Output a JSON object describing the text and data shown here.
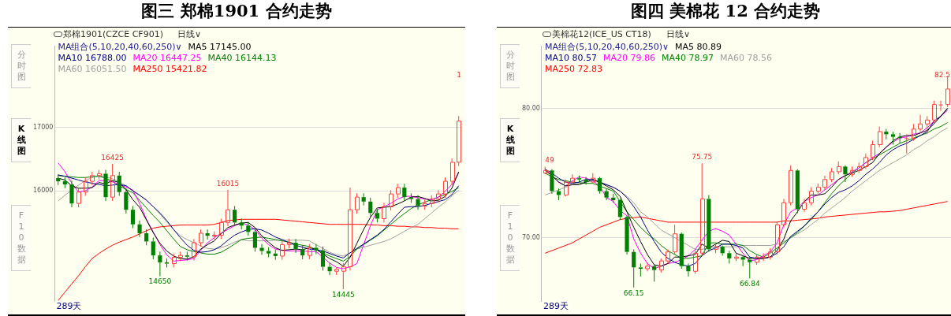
{
  "chart_data": [
    {
      "type": "candlestick",
      "title": "图三 郑棉1901 合约走势",
      "legend_title": "MA组合(5,10,20,40,60,250)∨",
      "categories": [
        null,
        null,
        null,
        null,
        null,
        null,
        null,
        null,
        null,
        null,
        null,
        null,
        null,
        null,
        null,
        null,
        null,
        null,
        null,
        null,
        null,
        null,
        null,
        null,
        null,
        null,
        null,
        null,
        null,
        null,
        null,
        null,
        null,
        null,
        null,
        null,
        null,
        null,
        null,
        null,
        null,
        null,
        null,
        null,
        null,
        null,
        null,
        null,
        null,
        null,
        null,
        null,
        null,
        null,
        null,
        null,
        null,
        null,
        null,
        null
      ],
      "ohlc": [
        [
          16200,
          16260,
          16090,
          16150
        ],
        [
          16150,
          16210,
          16040,
          16100
        ],
        [
          16100,
          16160,
          15740,
          15800
        ],
        [
          15800,
          16040,
          15740,
          15980
        ],
        [
          15980,
          16210,
          15920,
          16150
        ],
        [
          16150,
          16300,
          16090,
          16240
        ],
        [
          16240,
          16330,
          16180,
          16270
        ],
        [
          16270,
          16330,
          15840,
          15900
        ],
        [
          15900,
          16425,
          15840,
          16240
        ],
        [
          16240,
          16300,
          15920,
          15980
        ],
        [
          15980,
          16040,
          15640,
          15700
        ],
        [
          15700,
          15760,
          15410,
          15470
        ],
        [
          15470,
          15530,
          15270,
          15330
        ],
        [
          15330,
          15390,
          15140,
          15200
        ],
        [
          15200,
          15260,
          14920,
          14980
        ],
        [
          14980,
          15040,
          14650,
          14870
        ],
        [
          14870,
          14930,
          14790,
          14850
        ],
        [
          14850,
          15010,
          14790,
          14950
        ],
        [
          14950,
          15040,
          14890,
          14980
        ],
        [
          14980,
          15040,
          14900,
          14960
        ],
        [
          14960,
          15240,
          14900,
          15180
        ],
        [
          15180,
          15390,
          15120,
          15330
        ],
        [
          15330,
          15390,
          15230,
          15290
        ],
        [
          15290,
          15360,
          15230,
          15300
        ],
        [
          15300,
          15560,
          15240,
          15500
        ],
        [
          15500,
          16015,
          15440,
          15700
        ],
        [
          15700,
          15760,
          15440,
          15500
        ],
        [
          15500,
          15560,
          15390,
          15450
        ],
        [
          15450,
          15510,
          15290,
          15350
        ],
        [
          15350,
          15410,
          15040,
          15100
        ],
        [
          15100,
          15160,
          14990,
          15050
        ],
        [
          15050,
          15110,
          14950,
          15010
        ],
        [
          15010,
          15070,
          14910,
          14970
        ],
        [
          14970,
          15210,
          14910,
          15150
        ],
        [
          15150,
          15240,
          15090,
          15180
        ],
        [
          15180,
          15240,
          15020,
          15080
        ],
        [
          15080,
          15140,
          14920,
          14980
        ],
        [
          14980,
          15160,
          14920,
          15100
        ],
        [
          15100,
          15160,
          15000,
          15060
        ],
        [
          15060,
          15120,
          14740,
          14800
        ],
        [
          14800,
          14860,
          14670,
          14730
        ],
        [
          14730,
          14790,
          14670,
          14760
        ],
        [
          14730,
          14860,
          14445,
          14800
        ],
        [
          14800,
          16050,
          14740,
          15700
        ],
        [
          15700,
          15960,
          15640,
          15900
        ],
        [
          15900,
          15960,
          15770,
          15830
        ],
        [
          15830,
          15890,
          15590,
          15650
        ],
        [
          15650,
          15710,
          15500,
          15560
        ],
        [
          15560,
          15810,
          15500,
          15750
        ],
        [
          15750,
          16010,
          15690,
          15950
        ],
        [
          15950,
          16110,
          15890,
          16050
        ],
        [
          16050,
          16110,
          15840,
          15900
        ],
        [
          15900,
          15960,
          15810,
          15870
        ],
        [
          15870,
          15930,
          15700,
          15760
        ],
        [
          15760,
          15860,
          15700,
          15800
        ],
        [
          15800,
          15930,
          15740,
          15870
        ],
        [
          15870,
          16010,
          15810,
          15950
        ],
        [
          15950,
          16210,
          15890,
          16150
        ],
        [
          16150,
          16510,
          16090,
          16450
        ],
        [
          16450,
          17180,
          16390,
          17100
        ]
      ],
      "colors": [
        "#008000",
        "#008000",
        "#008000",
        "#ff4040",
        "#ff4040",
        "#ff4040",
        "#ff4040",
        "#008000",
        "#ff4040",
        "#008000",
        "#008000",
        "#008000",
        "#008000",
        "#008000",
        "#008000",
        "#008000",
        "#008000",
        "#ff4040",
        "#ff4040",
        "#008000",
        "#ff4040",
        "#ff4040",
        "#008000",
        "#ff4040",
        "#ff4040",
        "#ff4040",
        "#008000",
        "#008000",
        "#008000",
        "#008000",
        "#008000",
        "#008000",
        "#008000",
        "#ff4040",
        "#ff4040",
        "#008000",
        "#008000",
        "#ff4040",
        "#008000",
        "#008000",
        "#008000",
        "#ff4040",
        "#ff4040",
        "#ff4040",
        "#ff4040",
        "#008000",
        "#008000",
        "#008000",
        "#ff4040",
        "#ff4040",
        "#ff4040",
        "#008000",
        "#008000",
        "#008000",
        "#ff4040",
        "#ff4040",
        "#ff4040",
        "#ff4040",
        "#ff4040",
        "#ff4040"
      ],
      "series": [
        {
          "type": "line",
          "name": "MA5 17145.00",
          "color": "#000000",
          "values": [
            16200,
            16170,
            16080,
            16040,
            16040,
            16050,
            16130,
            16110,
            16160,
            16130,
            16020,
            15860,
            15740,
            15540,
            15340,
            15170,
            15050,
            14970,
            14930,
            14920,
            14960,
            15080,
            15150,
            15210,
            15320,
            15420,
            15460,
            15490,
            15500,
            15420,
            15290,
            15190,
            15100,
            15060,
            15070,
            15080,
            15070,
            15100,
            15080,
            15000,
            14930,
            14880,
            14810,
            14950,
            15170,
            15390,
            15580,
            15730,
            15740,
            15750,
            15790,
            15840,
            15900,
            15910,
            15880,
            15840,
            15850,
            15910,
            16040,
            16300
          ]
        },
        {
          "type": "line",
          "name": "MA10 16788.00",
          "color": "#000080",
          "values": [
            16250,
            16230,
            16200,
            16170,
            16140,
            16120,
            16100,
            16080,
            16090,
            16100,
            16080,
            16000,
            15930,
            15850,
            15750,
            15650,
            15530,
            15390,
            15260,
            15140,
            15060,
            15030,
            15040,
            15070,
            15130,
            15220,
            15300,
            15350,
            15390,
            15400,
            15380,
            15330,
            15270,
            15230,
            15180,
            15140,
            15110,
            15080,
            15070,
            15050,
            15010,
            14970,
            14940,
            15020,
            15090,
            15160,
            15230,
            15300,
            15390,
            15510,
            15630,
            15740,
            15750,
            15750,
            15770,
            15800,
            15830,
            15860,
            15940,
            16080
          ]
        },
        {
          "type": "line",
          "name": "MA20 16447.25",
          "color": "#ff00ff",
          "values": [
            16440,
            16300,
            16120,
            15980,
            16000,
            16060,
            16160,
            16160,
            16140,
            16100,
            16060,
            16010,
            15800,
            15550,
            15350,
            15150,
            14990,
            14890,
            14900,
            14910,
            14930,
            15060,
            15180,
            15260,
            15330,
            15390,
            15450,
            15490,
            15460,
            15390,
            15250,
            15150,
            15080,
            15060,
            15050,
            15050,
            15050,
            15040,
            15040,
            14950,
            14860,
            14790,
            14770,
            14800,
            14850,
            15150,
            15450,
            15700,
            15750,
            15800,
            15870,
            15910,
            15915,
            15890,
            15870,
            15860,
            15900,
            15990,
            16100,
            16280
          ]
        },
        {
          "type": "line",
          "name": "MA40 16144.13",
          "color": "#008000",
          "values": [
            16240,
            16230,
            16220,
            16210,
            16210,
            16220,
            16230,
            16200,
            16150,
            16080,
            16020,
            15970,
            15850,
            15730,
            15610,
            15500,
            15370,
            15240,
            15120,
            15070,
            15040,
            15020,
            15000,
            15000,
            15030,
            15090,
            15160,
            15230,
            15250,
            15260,
            15270,
            15250,
            15230,
            15210,
            15190,
            15160,
            15140,
            15120,
            15070,
            15020,
            14970,
            14930,
            14890,
            14960,
            15080,
            15150,
            15220,
            15290,
            15380,
            15470,
            15560,
            15640,
            15720,
            15780,
            15820,
            15860,
            15900,
            15940,
            15990,
            16050
          ]
        },
        {
          "type": "line",
          "name": "MA60 16051.50",
          "color": "#a0a0a0",
          "values": [
            15840,
            15930,
            16010,
            16090,
            16160,
            16210,
            16240,
            16220,
            16190,
            16140,
            16080,
            16000,
            15930,
            15860,
            15750,
            15630,
            15510,
            15390,
            15290,
            15230,
            15180,
            15130,
            15090,
            15080,
            15100,
            15140,
            15190,
            15230,
            15210,
            15210,
            15210,
            15210,
            15220,
            15220,
            15220,
            15220,
            15220,
            15210,
            15150,
            15090,
            15030,
            14990,
            14970,
            15020,
            15080,
            15110,
            15140,
            15170,
            15200,
            15240,
            15300,
            15360,
            15420,
            15470,
            15560,
            15650,
            15740,
            15820,
            15920,
            16010
          ]
        },
        {
          "type": "line",
          "name": "MA250 15421.82",
          "color": "#ff0000",
          "values": [
            14270,
            14400,
            14530,
            14660,
            14800,
            14930,
            15010,
            15080,
            15140,
            15190,
            15230,
            15270,
            15320,
            15370,
            15410,
            15430,
            15440,
            15450,
            15460,
            15460,
            15460,
            15460,
            15460,
            15470,
            15500,
            15530,
            15540,
            15550,
            15550,
            15550,
            15550,
            15550,
            15550,
            15540,
            15530,
            15520,
            15510,
            15500,
            15490,
            15480,
            15470,
            15470,
            15470,
            15470,
            15470,
            15470,
            15460,
            15460,
            15450,
            15450,
            15440,
            15440,
            15430,
            15430,
            15420,
            15420,
            15410,
            15410,
            15400,
            15400
          ]
        }
      ],
      "ylim": [
        14260,
        18280
      ],
      "yticks": [
        16000,
        17000
      ],
      "grid": "y",
      "legend": "top left",
      "tick_labels": "y",
      "marker": "none",
      "line_style": "solid",
      "annotations": [
        "郑棉1901(CZCE CF901)",
        "日线∨",
        "分时图",
        "K线图",
        "F10数据",
        "289天",
        "1",
        {
          "text": "16425",
          "y": 16425
        },
        {
          "text": "16015",
          "y": 16015
        },
        {
          "text": "14650",
          "y": 14650
        },
        {
          "text": "14445",
          "y": 14445
        }
      ]
    },
    {
      "type": "candlestick",
      "title": "图四 美棉花 12 合约走势",
      "legend_title": "MA组合(5,10,20,40,60,250)∨",
      "categories": [
        null,
        null,
        null,
        null,
        null,
        null,
        null,
        null,
        null,
        null,
        null,
        null,
        null,
        null,
        null,
        null,
        null,
        null,
        null,
        null,
        null,
        null,
        null,
        null,
        null,
        null,
        null,
        null,
        null,
        null,
        null,
        null,
        null,
        null,
        null,
        null,
        null,
        null,
        null,
        null,
        null,
        null,
        null,
        null,
        null,
        null,
        null,
        null,
        null,
        null,
        null,
        null,
        null,
        null,
        null,
        null,
        null,
        null,
        null,
        null
      ],
      "ohlc": [
        [
          75.0,
          75.49,
          74.9,
          75.2
        ],
        [
          75.2,
          75.3,
          73.4,
          73.6
        ],
        [
          73.6,
          73.8,
          72.9,
          73.3
        ],
        [
          73.3,
          74.5,
          73.2,
          74.3
        ],
        [
          74.3,
          74.9,
          74.2,
          74.6
        ],
        [
          74.6,
          74.8,
          74.3,
          74.5
        ],
        [
          74.5,
          74.7,
          74.1,
          74.3
        ],
        [
          74.3,
          75.0,
          74.2,
          74.6
        ],
        [
          74.6,
          74.7,
          73.4,
          73.6
        ],
        [
          73.6,
          73.8,
          72.9,
          73.1
        ],
        [
          73.1,
          73.4,
          72.7,
          72.9
        ],
        [
          72.9,
          73.0,
          71.4,
          71.6
        ],
        [
          71.6,
          71.7,
          68.7,
          68.9
        ],
        [
          68.9,
          69.1,
          66.15,
          67.7
        ],
        [
          67.7,
          68.0,
          67.0,
          67.6
        ],
        [
          67.6,
          68.1,
          67.4,
          67.8
        ],
        [
          67.8,
          67.9,
          66.6,
          67.5
        ],
        [
          67.5,
          68.4,
          67.3,
          68.2
        ],
        [
          68.2,
          69.1,
          68.0,
          68.9
        ],
        [
          68.9,
          71.0,
          68.7,
          70.3
        ],
        [
          70.3,
          70.4,
          67.6,
          67.8
        ],
        [
          67.8,
          68.0,
          67.0,
          67.4
        ],
        [
          67.4,
          69.0,
          67.2,
          68.8
        ],
        [
          68.8,
          75.75,
          68.6,
          73.0
        ],
        [
          73.0,
          73.3,
          68.9,
          69.1
        ],
        [
          69.1,
          69.6,
          68.8,
          69.3
        ],
        [
          69.3,
          69.4,
          68.6,
          68.8
        ],
        [
          68.8,
          69.0,
          68.0,
          68.4
        ],
        [
          68.4,
          68.8,
          68.2,
          68.5
        ],
        [
          68.5,
          68.6,
          67.8,
          68.3
        ],
        [
          68.3,
          68.5,
          66.84,
          68.1
        ],
        [
          68.1,
          68.7,
          67.9,
          68.5
        ],
        [
          68.5,
          68.8,
          68.2,
          68.5
        ],
        [
          68.5,
          69.2,
          68.3,
          68.9
        ],
        [
          68.9,
          71.2,
          68.7,
          71.0
        ],
        [
          71.0,
          73.0,
          70.8,
          72.7
        ],
        [
          72.7,
          75.6,
          72.5,
          75.2
        ],
        [
          75.2,
          75.3,
          71.9,
          72.2
        ],
        [
          72.2,
          73.0,
          72.0,
          72.7
        ],
        [
          72.7,
          73.9,
          72.5,
          73.6
        ],
        [
          73.6,
          74.2,
          73.4,
          73.9
        ],
        [
          73.9,
          74.8,
          73.7,
          74.5
        ],
        [
          74.5,
          75.4,
          74.3,
          75.1
        ],
        [
          75.1,
          75.9,
          74.9,
          75.5
        ],
        [
          75.5,
          75.6,
          74.3,
          74.9
        ],
        [
          74.9,
          75.5,
          74.7,
          75.2
        ],
        [
          75.2,
          75.8,
          75.0,
          75.5
        ],
        [
          75.5,
          76.5,
          75.3,
          76.2
        ],
        [
          76.2,
          77.5,
          76.0,
          77.2
        ],
        [
          77.2,
          78.6,
          77.0,
          78.2
        ],
        [
          78.2,
          78.4,
          77.6,
          78.0
        ],
        [
          78.0,
          78.2,
          77.2,
          77.8
        ],
        [
          77.8,
          78.1,
          77.3,
          77.7
        ],
        [
          77.7,
          78.0,
          76.5,
          77.7
        ],
        [
          77.7,
          78.8,
          77.5,
          78.4
        ],
        [
          78.4,
          79.5,
          78.2,
          78.8
        ],
        [
          78.8,
          79.4,
          78.0,
          79.1
        ],
        [
          79.1,
          80.6,
          78.9,
          80.3
        ],
        [
          80.3,
          80.6,
          79.8,
          80.3
        ],
        [
          80.3,
          82.5,
          80.1,
          81.5
        ]
      ],
      "colors": [
        "#ff4040",
        "#008000",
        "#008000",
        "#ff4040",
        "#ff4040",
        "#008000",
        "#008000",
        "#ff4040",
        "#008000",
        "#008000",
        "#008000",
        "#008000",
        "#008000",
        "#008000",
        "#008000",
        "#ff4040",
        "#008000",
        "#ff4040",
        "#ff4040",
        "#ff4040",
        "#008000",
        "#008000",
        "#ff4040",
        "#ff4040",
        "#008000",
        "#ff4040",
        "#008000",
        "#008000",
        "#ff4040",
        "#008000",
        "#008000",
        "#ff4040",
        "#ff4040",
        "#ff4040",
        "#ff4040",
        "#ff4040",
        "#ff4040",
        "#008000",
        "#ff4040",
        "#ff4040",
        "#ff4040",
        "#ff4040",
        "#ff4040",
        "#ff4040",
        "#008000",
        "#ff4040",
        "#ff4040",
        "#ff4040",
        "#ff4040",
        "#ff4040",
        "#008000",
        "#008000",
        "#008000",
        "#ff4040",
        "#ff4040",
        "#ff4040",
        "#ff4040",
        "#ff4040",
        "#ff4040",
        "#ff4040"
      ],
      "series": [
        {
          "type": "line",
          "name": "MA5 80.89",
          "color": "#000000",
          "values": [
            75.2,
            74.8,
            74.3,
            74.0,
            74.1,
            74.1,
            74.3,
            74.5,
            74.3,
            74.0,
            73.7,
            73.2,
            72.0,
            70.8,
            69.7,
            68.7,
            67.9,
            67.8,
            68.0,
            68.5,
            68.5,
            68.6,
            68.7,
            69.5,
            69.2,
            69.5,
            69.8,
            69.7,
            68.8,
            68.6,
            68.4,
            68.4,
            68.4,
            68.5,
            69.0,
            69.9,
            71.3,
            72.0,
            72.8,
            73.3,
            73.3,
            73.4,
            73.9,
            74.5,
            74.8,
            75.0,
            75.2,
            75.5,
            75.8,
            76.5,
            77.0,
            77.5,
            77.8,
            77.9,
            77.9,
            78.1,
            78.3,
            78.8,
            79.4,
            80.0
          ]
        },
        {
          "type": "line",
          "name": "MA10 80.57",
          "color": "#000080",
          "values": [
            75.3,
            75.0,
            74.6,
            74.3,
            74.2,
            74.3,
            74.5,
            74.5,
            74.3,
            74.1,
            73.9,
            73.6,
            73.1,
            72.4,
            71.6,
            70.6,
            69.7,
            68.9,
            68.4,
            68.1,
            67.9,
            67.8,
            68.0,
            68.6,
            69.0,
            69.2,
            69.5,
            69.5,
            69.4,
            69.2,
            68.5,
            68.4,
            68.4,
            68.5,
            68.8,
            69.3,
            70.1,
            70.5,
            70.9,
            71.5,
            72.0,
            72.6,
            73.1,
            73.5,
            73.7,
            74.0,
            74.4,
            74.9,
            75.3,
            75.8,
            76.4,
            76.8,
            77.1,
            77.3,
            77.6,
            77.9,
            78.2,
            79.0,
            79.4,
            80.0
          ]
        },
        {
          "type": "line",
          "name": "MA20 79.86",
          "color": "#ff00ff",
          "values": [
            75.3,
            74.8,
            74.3,
            74.0,
            74.4,
            74.7,
            74.6,
            74.4,
            74.0,
            73.1,
            72.8,
            72.1,
            71.7,
            69.9,
            68.8,
            68.0,
            67.6,
            67.8,
            68.0,
            68.1,
            68.3,
            68.6,
            69.1,
            69.8,
            70.5,
            70.7,
            70.5,
            70.2,
            69.5,
            68.8,
            68.2,
            68.3,
            68.6,
            68.9,
            69.6,
            71.0,
            72.0,
            72.3,
            72.8,
            73.1,
            73.3,
            73.7,
            74.1,
            74.5,
            74.8,
            75.1,
            75.4,
            75.8,
            76.2,
            76.5,
            77.0,
            77.4,
            77.7,
            77.8,
            78.0,
            78.1,
            78.5,
            79.0,
            79.4,
            79.85
          ]
        },
        {
          "type": "line",
          "name": "MA40 78.97",
          "color": "#008000",
          "values": [
            75.0,
            74.7,
            74.5,
            74.4,
            74.3,
            74.25,
            74.2,
            74.2,
            74.0,
            73.8,
            73.6,
            72.8,
            72.0,
            71.4,
            70.8,
            70.3,
            69.9,
            69.4,
            69.0,
            68.7,
            68.4,
            68.4,
            68.5,
            68.6,
            69.6,
            69.6,
            69.5,
            69.5,
            69.5,
            69.4,
            69.0,
            68.7,
            68.5,
            68.8,
            69.2,
            69.6,
            70.0,
            70.4,
            70.9,
            71.4,
            72.0,
            72.7,
            73.4,
            74.0,
            74.5,
            75.0,
            75.4,
            75.8,
            76.1,
            76.4,
            76.7,
            77.0,
            77.3,
            77.5,
            77.7,
            77.9,
            78.1,
            78.4,
            78.6,
            78.9
          ]
        },
        {
          "type": "line",
          "name": "MA60 78.56",
          "color": "#a0a0a0",
          "values": [
            73.3,
            73.5,
            73.7,
            73.9,
            74.1,
            74.2,
            74.3,
            74.4,
            74.3,
            74.1,
            73.9,
            73.6,
            73.2,
            72.7,
            72.0,
            71.6,
            71.1,
            70.6,
            70.3,
            70.0,
            69.7,
            69.4,
            69.1,
            69.1,
            69.2,
            69.3,
            69.3,
            69.3,
            69.3,
            69.4,
            69.4,
            69.4,
            69.4,
            69.4,
            69.5,
            69.7,
            70.0,
            70.3,
            70.6,
            71.0,
            71.4,
            71.9,
            72.3,
            72.7,
            73.1,
            73.6,
            74.0,
            74.4,
            74.8,
            75.2,
            75.5,
            75.8,
            76.1,
            76.4,
            76.8,
            77.1,
            77.5,
            77.8,
            78.2,
            78.5
          ]
        },
        {
          "type": "line",
          "name": "MA250 72.83",
          "color": "#ff0000",
          "values": [
            68.8,
            69.0,
            69.2,
            69.4,
            69.6,
            69.9,
            70.2,
            70.5,
            70.8,
            71.0,
            71.2,
            71.4,
            71.5,
            71.55,
            71.6,
            71.5,
            71.4,
            71.3,
            71.2,
            71.2,
            71.2,
            71.2,
            71.2,
            71.2,
            71.2,
            71.2,
            71.2,
            71.2,
            71.2,
            71.2,
            71.2,
            71.2,
            71.2,
            71.2,
            71.2,
            71.3,
            71.3,
            71.35,
            71.4,
            71.45,
            71.5,
            71.6,
            71.65,
            71.7,
            71.75,
            71.8,
            71.85,
            71.9,
            71.95,
            72.0,
            72.0,
            72.05,
            72.1,
            72.2,
            72.3,
            72.4,
            72.5,
            72.6,
            72.7,
            72.8
          ]
        }
      ],
      "ylim": [
        65.1,
        84.8
      ],
      "yticks": [
        {
          "value": 70,
          "label": "70.00"
        },
        {
          "value": 80,
          "label": "80.00"
        }
      ],
      "grid": "y",
      "legend": "top left",
      "tick_labels": "y",
      "marker": "none",
      "line_style": "solid",
      "annotations": [
        "美棉花12(ICE_US CT18)",
        "日线∨",
        "分时图",
        "K线图",
        "F10数据",
        "289天",
        {
          "text": "49",
          "y": 75.49
        },
        {
          "text": "75.75",
          "y": 75.75
        },
        {
          "text": "66.15",
          "y": 66.15
        },
        "82.5",
        {
          "text": "66.84",
          "y": 66.84
        }
      ]
    }
  ]
}
